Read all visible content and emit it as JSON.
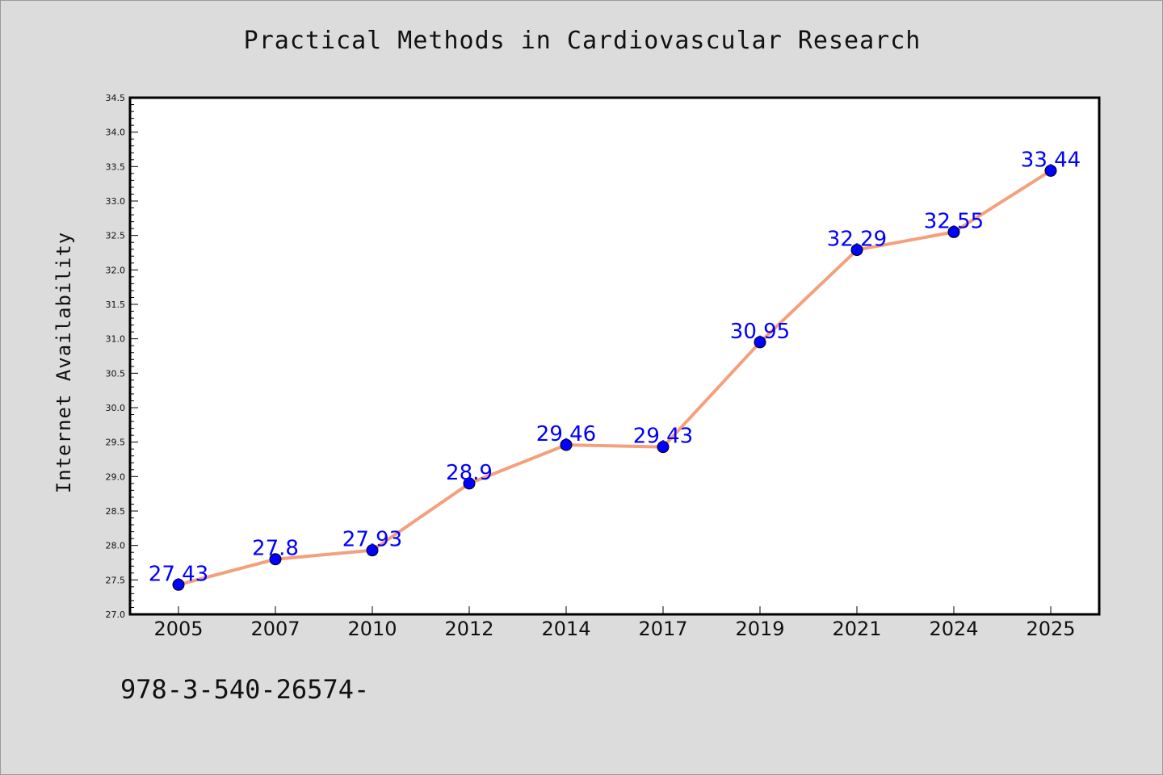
{
  "chart_data": {
    "type": "line",
    "title": "Practical Methods in Cardiovascular Research",
    "xlabel": "",
    "ylabel": "Internet Availability",
    "categories": [
      "2005",
      "2007",
      "2010",
      "2012",
      "2014",
      "2017",
      "2019",
      "2021",
      "2024",
      "2025"
    ],
    "series": [
      {
        "values": [
          27.43,
          27.8,
          27.93,
          28.9,
          29.46,
          29.43,
          30.95,
          32.29,
          32.55,
          33.44
        ],
        "data_labels": [
          "27.43",
          "27.8",
          "27.93",
          "28.9",
          "29.46",
          "29.43",
          "30.95",
          "32.29",
          "32.55",
          "33.44"
        ],
        "line_color": "#f4a07c",
        "marker_color": "#0000ff"
      }
    ],
    "ylim": [
      27.0,
      34.5
    ],
    "yticks": [
      "27.0",
      "27.5",
      "28.0",
      "28.5",
      "29.0",
      "29.5",
      "30.0",
      "30.5",
      "31.0",
      "31.5",
      "32.0",
      "32.5",
      "33.0",
      "33.5",
      "34.0",
      "34.5"
    ],
    "grid": false,
    "legend": "none",
    "label_color": "#0000ff",
    "background_color": "#dcdcdc",
    "plot_background_color": "#ffffff"
  },
  "footer": {
    "text": "978-3-540-26574-"
  }
}
